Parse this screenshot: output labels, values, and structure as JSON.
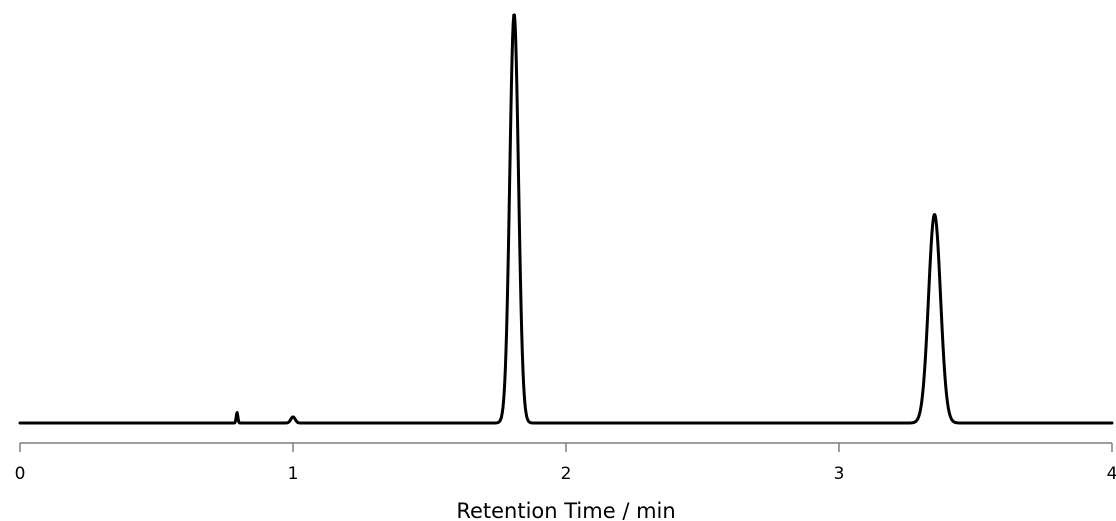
{
  "chart_data": {
    "type": "line",
    "title": "",
    "xlabel": "Retention Time / min",
    "ylabel": "",
    "xlim": [
      0,
      4
    ],
    "ylim": [
      0,
      1
    ],
    "x_ticks": [
      "0",
      "1",
      "2",
      "3",
      "4"
    ],
    "grid": false,
    "legend": false,
    "colors": {
      "trace": "#000000",
      "axis": "#7f7f7f",
      "background": "#ffffff"
    },
    "series": [
      {
        "peaks": [
          {
            "x": 0.795,
            "height": 0.026,
            "width": 0.003
          },
          {
            "x": 1.0,
            "height": 0.015,
            "width": 0.008
          },
          {
            "x": 1.81,
            "height": 1.0,
            "width": 0.016
          },
          {
            "x": 3.35,
            "height": 0.51,
            "width": 0.022
          }
        ]
      }
    ]
  }
}
